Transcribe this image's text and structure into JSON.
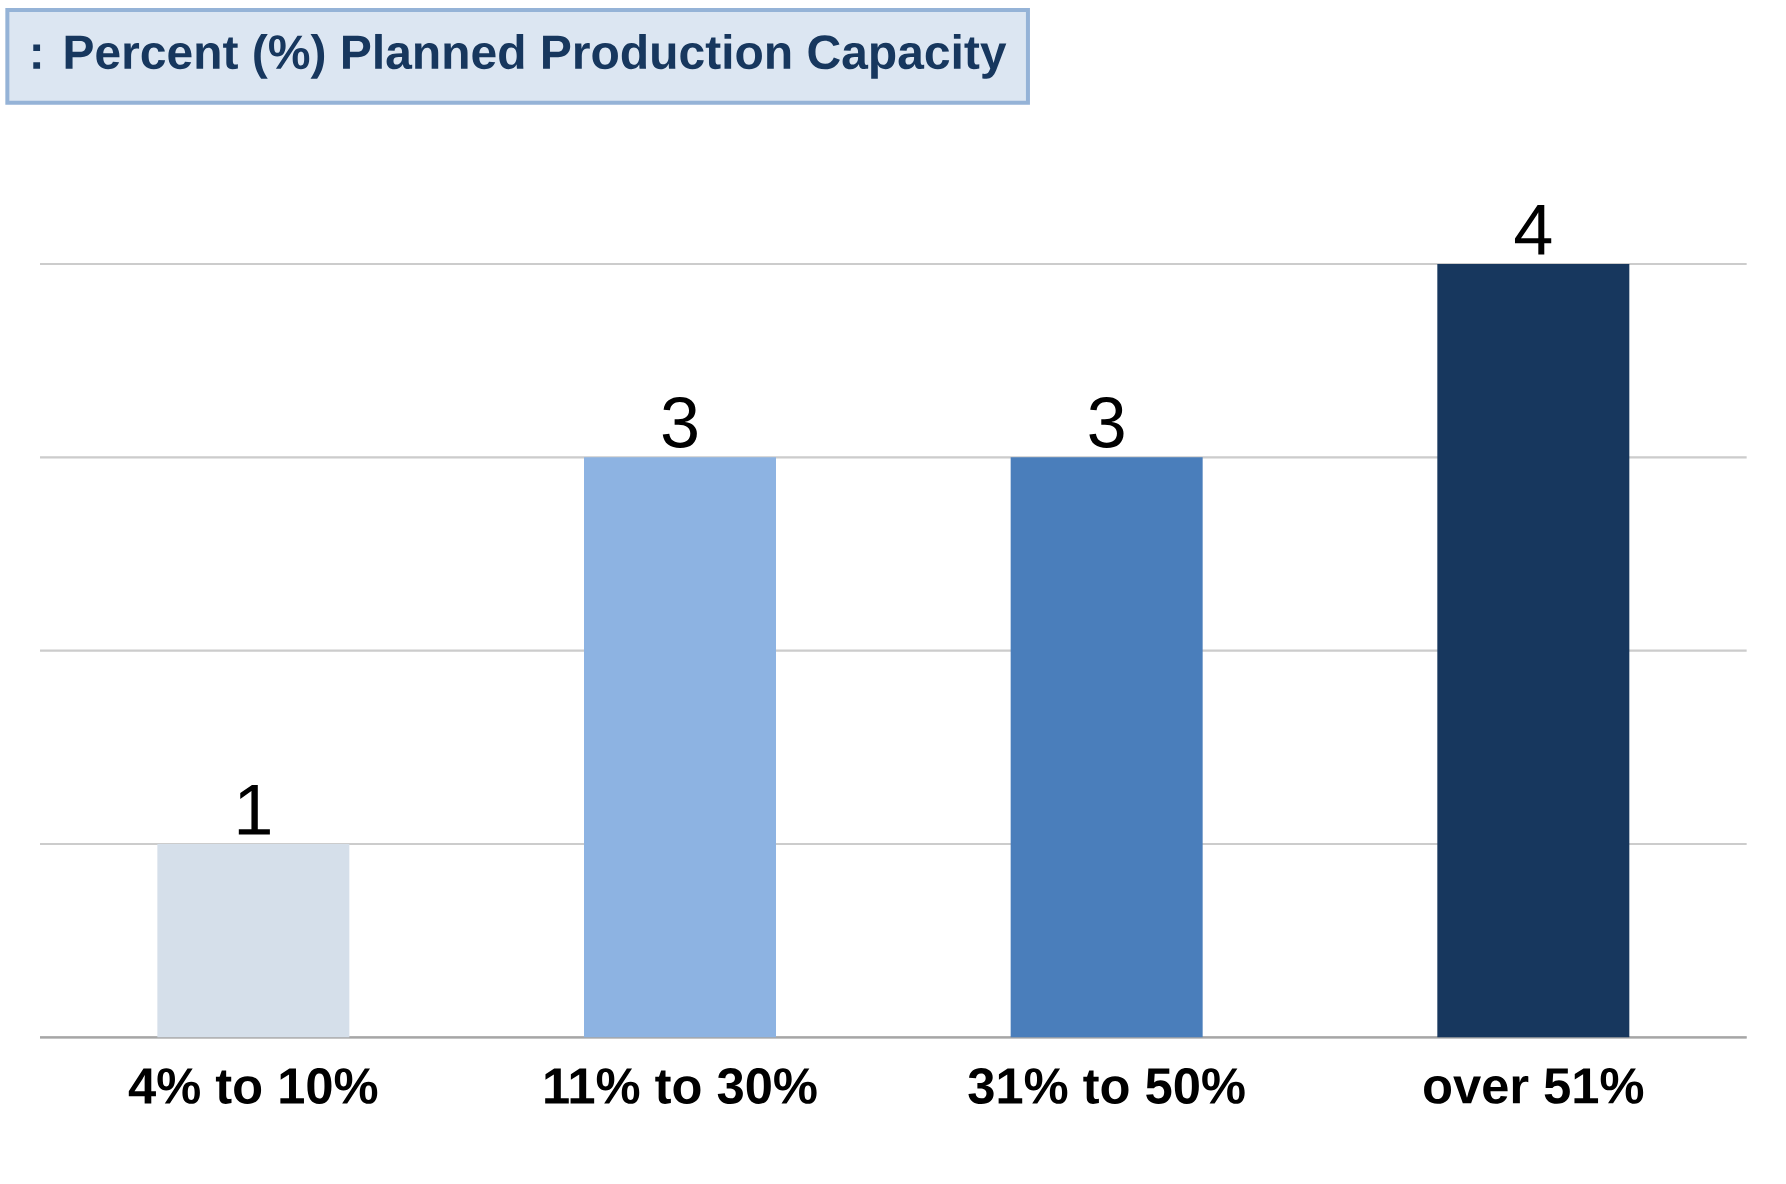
{
  "chart_data": {
    "type": "bar",
    "title": ": Percent (%) Planned Production Capacity",
    "categories": [
      "4% to 10%",
      "11% to 30%",
      "31% to 50%",
      "over 51%"
    ],
    "values": [
      1,
      3,
      3,
      4
    ],
    "colors": [
      "#d5dfea",
      "#8db3e2",
      "#4a7ebb",
      "#17375e"
    ],
    "ylim": [
      0,
      4
    ],
    "yticks": [
      {
        "value": 0,
        "label": null
      },
      {
        "value": 1,
        "label": null
      },
      {
        "value": 2,
        "label": null
      },
      {
        "value": 3,
        "label": null
      },
      {
        "value": 4,
        "label": null
      }
    ],
    "tick_labels": "x",
    "grid": "y",
    "data_labels": true
  }
}
